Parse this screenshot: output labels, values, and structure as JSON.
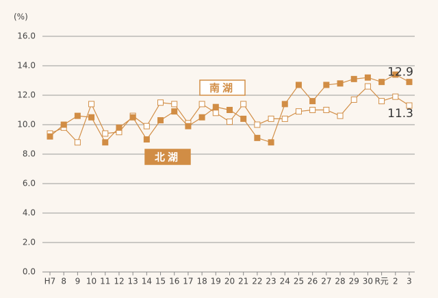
{
  "chart_data": {
    "type": "line",
    "y_label": "(%)",
    "categories": [
      "H7",
      "8",
      "9",
      "10",
      "11",
      "12",
      "13",
      "14",
      "15",
      "16",
      "17",
      "18",
      "19",
      "20",
      "21",
      "22",
      "23",
      "24",
      "25",
      "26",
      "27",
      "28",
      "29",
      "30",
      "R元",
      "2",
      "3"
    ],
    "series": [
      {
        "name": "南湖",
        "color": "#d18d45",
        "marker": "open-square",
        "values": [
          9.4,
          9.8,
          8.8,
          11.4,
          9.4,
          9.5,
          10.6,
          9.9,
          11.5,
          11.4,
          10.1,
          11.4,
          10.8,
          10.2,
          11.4,
          10.0,
          10.4,
          10.4,
          10.9,
          11.0,
          11.0,
          10.6,
          11.7,
          12.6,
          11.6,
          11.9,
          11.3
        ]
      },
      {
        "name": "北湖",
        "color": "#d18d45",
        "marker": "filled-square",
        "values": [
          9.2,
          10.0,
          10.6,
          10.5,
          8.8,
          9.8,
          10.5,
          9.0,
          10.3,
          10.9,
          9.9,
          10.5,
          11.2,
          11.0,
          10.4,
          9.1,
          8.8,
          11.4,
          12.7,
          11.6,
          12.7,
          12.8,
          13.1,
          13.2,
          12.9,
          13.4,
          12.9
        ]
      }
    ],
    "ylim": [
      0,
      16
    ],
    "yticks": [
      {
        "value": 0,
        "label": "0.0"
      },
      {
        "value": 2,
        "label": "2.0"
      },
      {
        "value": 4,
        "label": "4.0"
      },
      {
        "value": 6,
        "label": "6.0"
      },
      {
        "value": 8,
        "label": "8.0"
      },
      {
        "value": 10,
        "label": "10.0"
      },
      {
        "value": 12,
        "label": "12.0"
      },
      {
        "value": 14,
        "label": "14.0"
      },
      {
        "value": 16,
        "label": "16.0"
      }
    ],
    "grid": true
  }
}
